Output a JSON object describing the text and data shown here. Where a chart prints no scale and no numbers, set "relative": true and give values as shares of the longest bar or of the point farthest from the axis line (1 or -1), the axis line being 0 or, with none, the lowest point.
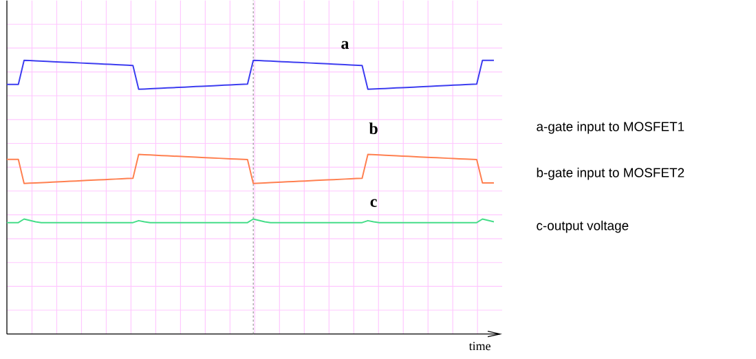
{
  "chart_data": {
    "type": "line",
    "relative": true,
    "grid": true,
    "xlabel": "time",
    "categories": [
      null,
      null,
      null,
      null,
      null,
      null,
      null,
      null,
      null,
      null,
      null,
      null,
      null,
      null,
      null,
      null,
      null,
      null,
      null,
      null,
      null,
      null,
      null,
      null,
      null,
      null,
      null,
      null,
      null,
      null,
      null,
      null,
      null,
      null,
      null,
      null,
      null,
      null,
      null,
      null,
      null,
      null,
      null,
      null,
      null,
      null,
      null,
      null,
      null,
      null,
      null,
      null,
      null,
      null,
      null,
      null,
      null,
      null,
      null,
      null,
      null,
      null,
      null,
      null,
      null,
      null,
      null,
      null,
      null,
      null,
      null,
      null,
      null,
      null,
      null,
      null,
      null,
      null,
      null,
      null,
      null,
      null,
      null,
      null,
      null,
      null
    ],
    "series": [
      {
        "name": "a",
        "color": "#3c3cf0",
        "values": [
          0.912,
          0.912,
          0.912,
          1.0,
          0.999,
          0.998,
          0.997,
          0.996,
          0.995,
          0.994,
          0.993,
          0.992,
          0.991,
          0.99,
          0.989,
          0.988,
          0.987,
          0.986,
          0.985,
          0.984,
          0.983,
          0.982,
          0.981,
          0.894,
          0.895,
          0.896,
          0.897,
          0.898,
          0.899,
          0.9,
          0.901,
          0.902,
          0.903,
          0.904,
          0.905,
          0.906,
          0.907,
          0.908,
          0.909,
          0.91,
          0.911,
          0.912,
          0.913,
          1.0,
          0.999,
          0.998,
          0.997,
          0.996,
          0.995,
          0.994,
          0.993,
          0.992,
          0.991,
          0.99,
          0.989,
          0.988,
          0.987,
          0.986,
          0.985,
          0.984,
          0.983,
          0.982,
          0.981,
          0.894,
          0.895,
          0.896,
          0.897,
          0.898,
          0.899,
          0.9,
          0.901,
          0.902,
          0.903,
          0.904,
          0.905,
          0.906,
          0.907,
          0.908,
          0.909,
          0.91,
          0.911,
          0.912,
          0.913,
          1.0,
          1.0,
          1.0
        ]
      },
      {
        "name": "b",
        "color": "#ff7f4f",
        "values": [
          0.638,
          0.638,
          0.638,
          0.55,
          0.551,
          0.552,
          0.553,
          0.554,
          0.555,
          0.556,
          0.557,
          0.558,
          0.559,
          0.56,
          0.561,
          0.562,
          0.563,
          0.564,
          0.565,
          0.566,
          0.567,
          0.568,
          0.569,
          0.656,
          0.655,
          0.654,
          0.653,
          0.652,
          0.651,
          0.65,
          0.649,
          0.648,
          0.647,
          0.646,
          0.645,
          0.644,
          0.643,
          0.642,
          0.641,
          0.64,
          0.639,
          0.638,
          0.637,
          0.55,
          0.551,
          0.552,
          0.553,
          0.554,
          0.555,
          0.556,
          0.557,
          0.558,
          0.559,
          0.56,
          0.561,
          0.562,
          0.563,
          0.564,
          0.565,
          0.566,
          0.567,
          0.568,
          0.569,
          0.656,
          0.655,
          0.654,
          0.653,
          0.652,
          0.651,
          0.65,
          0.649,
          0.648,
          0.647,
          0.646,
          0.645,
          0.644,
          0.643,
          0.642,
          0.641,
          0.64,
          0.639,
          0.638,
          0.637,
          0.552,
          0.552,
          0.552
        ]
      },
      {
        "name": "c",
        "color": "#44dd88",
        "values": [
          0.407,
          0.407,
          0.407,
          0.42,
          0.415,
          0.41,
          0.407,
          0.407,
          0.407,
          0.407,
          0.407,
          0.407,
          0.407,
          0.407,
          0.407,
          0.407,
          0.407,
          0.407,
          0.407,
          0.407,
          0.407,
          0.407,
          0.407,
          0.414,
          0.41,
          0.407,
          0.407,
          0.407,
          0.407,
          0.407,
          0.407,
          0.407,
          0.407,
          0.407,
          0.407,
          0.407,
          0.407,
          0.407,
          0.407,
          0.407,
          0.407,
          0.407,
          0.407,
          0.42,
          0.415,
          0.41,
          0.407,
          0.407,
          0.407,
          0.407,
          0.407,
          0.407,
          0.407,
          0.407,
          0.407,
          0.407,
          0.407,
          0.407,
          0.407,
          0.407,
          0.407,
          0.407,
          0.407,
          0.414,
          0.41,
          0.407,
          0.407,
          0.407,
          0.407,
          0.407,
          0.407,
          0.407,
          0.407,
          0.407,
          0.407,
          0.407,
          0.407,
          0.407,
          0.407,
          0.407,
          0.407,
          0.407,
          0.407,
          0.42,
          0.415,
          0.41
        ]
      }
    ],
    "annotations": [
      "a-gate input to MOSFET1",
      "b-gate input to MOSFET2",
      "c-output voltage"
    ]
  }
}
